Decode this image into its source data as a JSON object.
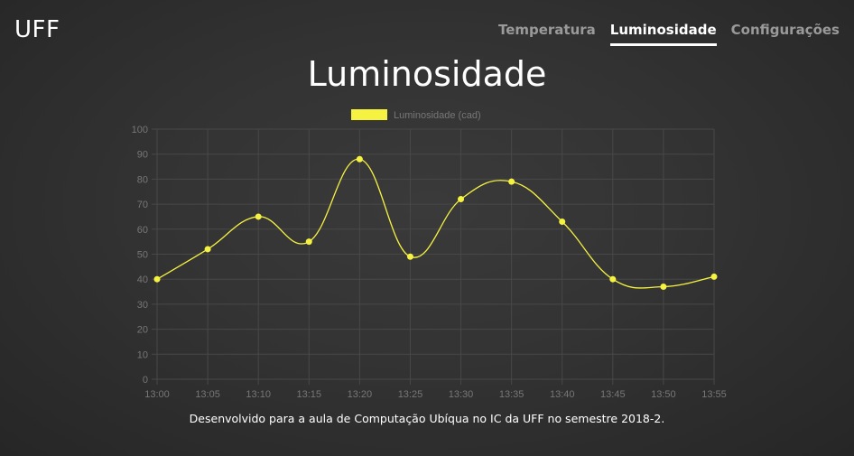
{
  "header": {
    "brand": "UFF",
    "nav": [
      {
        "label": "Temperatura",
        "active": false
      },
      {
        "label": "Luminosidade",
        "active": true
      },
      {
        "label": "Configurações",
        "active": false
      }
    ]
  },
  "page_title": "Luminosidade",
  "footer": "Desenvolvido para a aula de Computação Ubíqua no IC da UFF no semestre 2018-2.",
  "chart_data": {
    "type": "line",
    "categories": [
      "13:00",
      "13:05",
      "13:10",
      "13:15",
      "13:20",
      "13:25",
      "13:30",
      "13:35",
      "13:40",
      "13:45",
      "13:50",
      "13:55"
    ],
    "series": [
      {
        "name": "Luminosidade (cad)",
        "values": [
          40,
          52,
          65,
          55,
          88,
          49,
          72,
          79,
          63,
          40,
          37,
          41
        ],
        "color": "#f5f242"
      }
    ],
    "ylim": [
      0,
      100
    ],
    "yticks": [
      0,
      10,
      20,
      30,
      40,
      50,
      60,
      70,
      80,
      90,
      100
    ],
    "grid": true,
    "legend": "top-center",
    "curve": "smooth"
  },
  "colors": {
    "line": "#f5f242",
    "grid": "#484848",
    "tick_text": "#777777"
  }
}
